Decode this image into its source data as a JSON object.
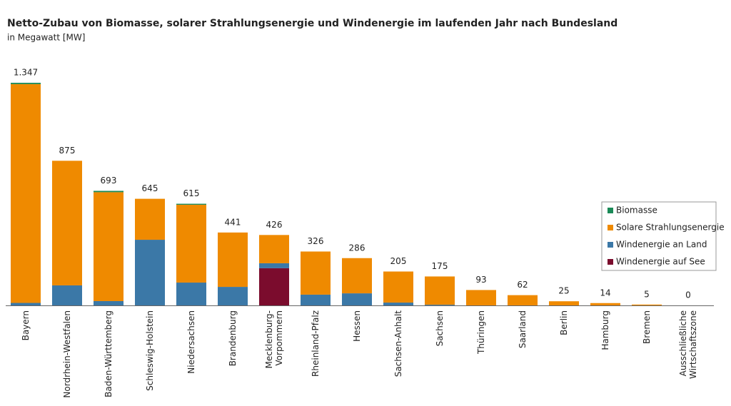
{
  "chart_data": {
    "type": "stacked-bar",
    "title": "Netto-Zubau von Biomasse, solarer Strahlungsenergie und Windenergie im laufenden Jahr nach Bundesland",
    "subtitle": "in Megawatt [MW]",
    "categories": [
      "Bayern",
      "Nordrhein-Westfalen",
      "Baden-Württemberg",
      "Schleswig-Holstein",
      "Niedersachsen",
      "Brandenburg",
      "Mecklenburg-\nVorpommern",
      "Rheinland-Pfalz",
      "Hessen",
      "Sachsen-Anhalt",
      "Sachsen",
      "Thüringen",
      "Saarland",
      "Berlin",
      "Hamburg",
      "Bremen",
      "Ausschließliche\nWirtschaftszone"
    ],
    "series": [
      {
        "name": "Windenergie auf See",
        "color": "#7b0c2d",
        "values": [
          0,
          0,
          0,
          0,
          0,
          0,
          225,
          0,
          0,
          0,
          0,
          0,
          0,
          0,
          0,
          0,
          0
        ]
      },
      {
        "name": "Windenergie an Land",
        "color": "#3b78a7",
        "values": [
          15,
          121,
          26,
          397,
          138,
          112,
          30,
          65,
          73,
          17,
          4,
          0,
          0,
          0,
          0,
          0,
          0
        ]
      },
      {
        "name": "Solare Strahlungsenergie",
        "color": "#ef8a00",
        "values": [
          1324,
          754,
          659,
          248,
          471,
          329,
          171,
          261,
          213,
          188,
          171,
          93,
          62,
          25,
          14,
          5,
          0
        ]
      },
      {
        "name": "Biomasse",
        "color": "#1a8a57",
        "values": [
          8,
          0,
          8,
          0,
          6,
          0,
          0,
          0,
          0,
          0,
          0,
          0,
          0,
          0,
          0,
          0,
          0
        ]
      }
    ],
    "totals": [
      {
        "value": 1347,
        "label": "1.347"
      },
      875,
      693,
      645,
      615,
      441,
      426,
      326,
      286,
      205,
      175,
      93,
      62,
      25,
      14,
      5,
      0
    ],
    "legend": "right"
  }
}
